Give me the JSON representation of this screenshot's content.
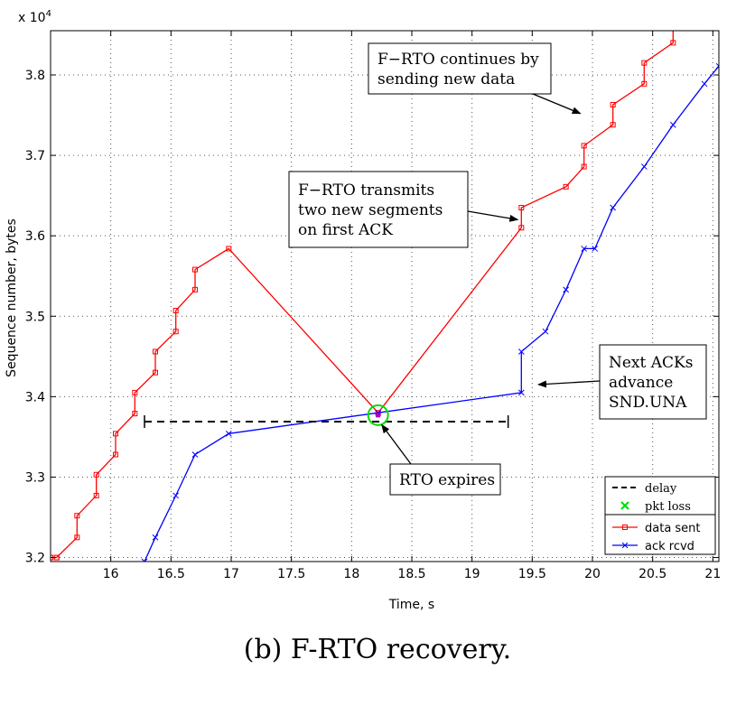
{
  "caption": "(b) F-RTO recovery.",
  "chart_data": {
    "type": "line",
    "xlabel": "Time, s",
    "ylabel": "Sequence number, bytes",
    "multiplier_label": "x 10",
    "multiplier_exp": "4",
    "xlim": [
      15.5,
      21.05
    ],
    "ylim": [
      31950,
      38550
    ],
    "x_ticks": [
      16,
      16.5,
      17,
      17.5,
      18,
      18.5,
      19,
      19.5,
      20,
      20.5,
      21
    ],
    "x_tick_labels": [
      "16",
      "16.5",
      "17",
      "17.5",
      "18",
      "18.5",
      "19",
      "19.5",
      "20",
      "20.5",
      "21"
    ],
    "y_ticks": [
      32000,
      33000,
      34000,
      35000,
      36000,
      37000,
      38000
    ],
    "y_tick_labels": [
      "3.2",
      "3.3",
      "3.4",
      "3.5",
      "3.6",
      "3.7",
      "3.8"
    ],
    "grid": true,
    "legend_position": "bottom-right",
    "series": [
      {
        "name": "data sent",
        "color": "#ff0000",
        "marker": "square",
        "points": [
          [
            15.5,
            32000
          ],
          [
            15.55,
            32000
          ],
          [
            15.55,
            32000
          ],
          [
            15.72,
            32250
          ],
          [
            15.72,
            32520
          ],
          [
            15.88,
            32770
          ],
          [
            15.88,
            33030
          ],
          [
            16.04,
            33280
          ],
          [
            16.04,
            33540
          ],
          [
            16.2,
            33790
          ],
          [
            16.2,
            34050
          ],
          [
            16.37,
            34300
          ],
          [
            16.37,
            34560
          ],
          [
            16.54,
            34810
          ],
          [
            16.54,
            35070
          ],
          [
            16.7,
            35330
          ],
          [
            16.7,
            35580
          ],
          [
            16.98,
            35840
          ],
          [
            18.22,
            33800
          ],
          [
            19.41,
            36100
          ],
          [
            19.41,
            36350
          ],
          [
            19.78,
            36610
          ],
          [
            19.93,
            36860
          ],
          [
            19.93,
            37120
          ],
          [
            20.17,
            37380
          ],
          [
            20.17,
            37630
          ],
          [
            20.43,
            37890
          ],
          [
            20.43,
            38150
          ],
          [
            20.67,
            38400
          ],
          [
            20.67,
            38600
          ]
        ]
      },
      {
        "name": "ack rcvd",
        "color": "#0000ff",
        "marker": "x",
        "points": [
          [
            16.28,
            31950
          ],
          [
            16.37,
            32250
          ],
          [
            16.54,
            32770
          ],
          [
            16.7,
            33280
          ],
          [
            16.98,
            33540
          ],
          [
            18.22,
            33800
          ],
          [
            19.41,
            34050
          ],
          [
            19.41,
            34560
          ],
          [
            19.61,
            34810
          ],
          [
            19.78,
            35330
          ],
          [
            19.93,
            35840
          ],
          [
            20.02,
            35840
          ],
          [
            20.17,
            36350
          ],
          [
            20.43,
            36860
          ],
          [
            20.67,
            37380
          ],
          [
            20.93,
            37890
          ],
          [
            21.05,
            38110
          ]
        ]
      }
    ],
    "delay": {
      "x_start": 16.28,
      "x_end": 19.3,
      "y": 33690
    },
    "pkt_loss": {
      "x": 18.22,
      "y": 33770,
      "color": "#00dd00"
    },
    "legend": [
      {
        "key": "delay",
        "label": "delay",
        "style": "dashed",
        "color": "#000000"
      },
      {
        "key": "pkt_loss",
        "label": "pkt loss",
        "style": "x",
        "color": "#00dd00"
      },
      {
        "key": "data_sent",
        "label": "data sent",
        "style": "line-square",
        "color": "#ff0000"
      },
      {
        "key": "ack_rcvd",
        "label": "ack rcvd",
        "style": "line-x",
        "color": "#0000ff"
      }
    ],
    "annotations": [
      {
        "key": "continues",
        "lines": [
          "F−RTO continues by",
          "sending new data"
        ],
        "target": [
          19.9,
          37520
        ]
      },
      {
        "key": "transmits",
        "lines": [
          "F−RTO transmits",
          "two new segments",
          "on first ACK"
        ],
        "target": [
          19.38,
          36200
        ]
      },
      {
        "key": "next_acks",
        "lines": [
          "Next ACKs",
          "advance",
          "SND.UNA"
        ],
        "target": [
          19.55,
          34150
        ]
      },
      {
        "key": "rto_expires",
        "lines": [
          "RTO expires"
        ],
        "target": [
          18.25,
          33650
        ]
      }
    ]
  }
}
